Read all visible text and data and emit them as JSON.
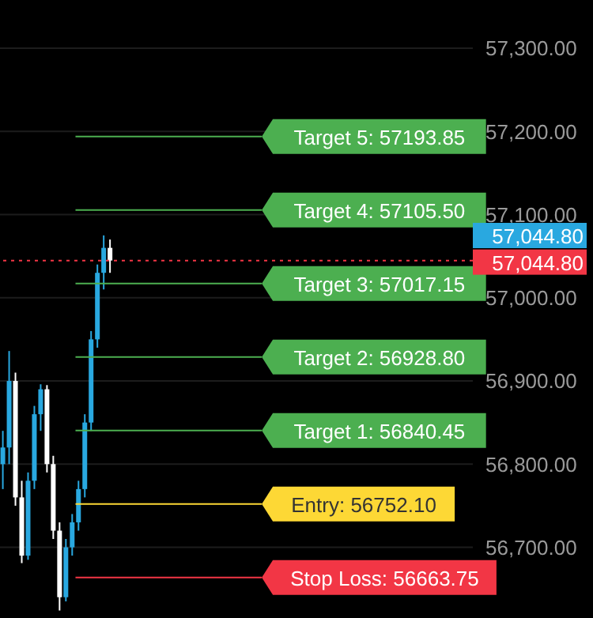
{
  "chart_data": {
    "type": "candlestick",
    "categories": [
      null,
      null,
      null,
      null,
      null,
      null,
      null,
      null,
      null,
      null,
      null,
      null,
      null,
      null,
      null,
      null,
      null,
      null,
      null,
      null,
      null,
      null,
      null,
      null,
      null,
      null,
      null,
      null,
      null,
      null,
      null,
      null,
      null,
      null,
      null,
      null,
      null,
      null,
      null,
      null,
      null,
      null,
      null,
      null,
      null,
      null,
      null,
      null,
      null,
      null,
      null,
      null,
      null,
      null,
      null,
      null,
      null,
      null,
      null,
      null,
      null,
      null,
      null,
      null,
      null,
      null,
      null,
      null,
      null,
      null,
      null,
      null,
      null,
      null,
      null
    ],
    "ohlc": [
      [
        56800,
        56840,
        56770,
        56820
      ],
      [
        56820,
        56936,
        56800,
        56900
      ],
      [
        56900,
        56910,
        56750,
        56760
      ],
      [
        56760,
        56780,
        56681,
        56690
      ],
      [
        56690,
        56790,
        56685,
        56780
      ],
      [
        56780,
        56870,
        56770,
        56860
      ],
      [
        56860,
        56896,
        56840,
        56890
      ],
      [
        56890,
        56895,
        56790,
        56800
      ],
      [
        56800,
        56810,
        56710,
        56720
      ],
      [
        56720,
        56730,
        56624,
        56640
      ],
      [
        56640,
        56710,
        56635,
        56700
      ],
      [
        56700,
        56740,
        56690,
        56730
      ],
      [
        56730,
        56780,
        56720,
        56770
      ],
      [
        56770,
        56860,
        56760,
        56850
      ],
      [
        56850,
        56960,
        56840,
        56950
      ],
      [
        56950,
        57040,
        56940,
        57030
      ],
      [
        57030,
        57075,
        57010,
        57060
      ],
      [
        57060,
        57070,
        57030,
        57044.8
      ],
      null,
      null,
      null,
      null,
      null,
      null,
      null,
      null,
      null,
      null,
      null,
      null,
      null,
      null,
      null,
      null,
      null,
      null,
      null,
      null,
      null,
      null,
      null,
      null,
      null,
      null,
      null,
      null,
      null,
      null,
      null,
      null,
      null,
      null,
      null,
      null,
      null,
      null,
      null,
      null,
      null,
      null,
      null,
      null,
      null,
      null,
      null,
      null,
      null,
      null,
      null,
      null,
      null,
      null,
      null,
      null,
      null
    ],
    "colors": [
      "#29a8e0",
      "#29a8e0",
      "#ffffff",
      "#ffffff",
      "#29a8e0",
      "#29a8e0",
      "#29a8e0",
      "#ffffff",
      "#ffffff",
      "#ffffff",
      "#29a8e0",
      "#29a8e0",
      "#29a8e0",
      "#29a8e0",
      "#29a8e0",
      "#29a8e0",
      "#29a8e0",
      "#ffffff",
      null,
      null,
      null,
      null,
      null,
      null,
      null,
      null,
      null,
      null,
      null,
      null,
      null,
      null,
      null,
      null,
      null,
      null,
      null,
      null,
      null,
      null,
      null,
      null,
      null,
      null,
      null,
      null,
      null,
      null,
      null,
      null,
      null,
      null,
      null,
      null,
      null,
      null,
      null,
      null,
      null,
      null,
      null,
      null,
      null,
      null,
      null,
      null,
      null,
      null,
      null,
      null,
      null,
      null,
      null,
      null,
      null
    ],
    "ylim": [
      56615,
      57358
    ],
    "yticks": [
      {
        "value": 56700,
        "label": "56,700.00"
      },
      {
        "value": 56800,
        "label": "56,800.00"
      },
      {
        "value": 56900,
        "label": "56,900.00"
      },
      {
        "value": 57000,
        "label": "57,000.00"
      },
      {
        "value": 57100,
        "label": "57,100.00"
      },
      {
        "value": 57200,
        "label": "57,200.00"
      },
      {
        "value": 57300,
        "label": "57,300.00"
      }
    ],
    "tick_labels": "y",
    "grid": true,
    "ref_lines": [
      {
        "axis": "y",
        "value": 57193.85,
        "label": "Target 5: 57193.85",
        "color": "#4caf50",
        "line_style": "solid"
      },
      {
        "axis": "y",
        "value": 57105.5,
        "label": "Target 4: 57105.50",
        "color": "#4caf50",
        "line_style": "solid"
      },
      {
        "axis": "y",
        "value": 57017.15,
        "label": "Target 3: 57017.15",
        "color": "#4caf50",
        "line_style": "solid"
      },
      {
        "axis": "y",
        "value": 56928.8,
        "label": "Target 2: 56928.80",
        "color": "#4caf50",
        "line_style": "solid"
      },
      {
        "axis": "y",
        "value": 56840.45,
        "label": "Target 1: 56840.45",
        "color": "#4caf50",
        "line_style": "solid"
      },
      {
        "axis": "y",
        "value": 56752.1,
        "label": "Entry: 56752.10",
        "color": "#fdd835",
        "line_style": "solid"
      },
      {
        "axis": "y",
        "value": 56663.75,
        "label": "Stop Loss: 56663.75",
        "color": "#f23645",
        "line_style": "solid"
      },
      {
        "axis": "y",
        "value": 57044.8,
        "label": "57,044.80",
        "color": "#f23645",
        "line_style": "dotted"
      }
    ],
    "annotations": [
      "57,044.80"
    ]
  }
}
